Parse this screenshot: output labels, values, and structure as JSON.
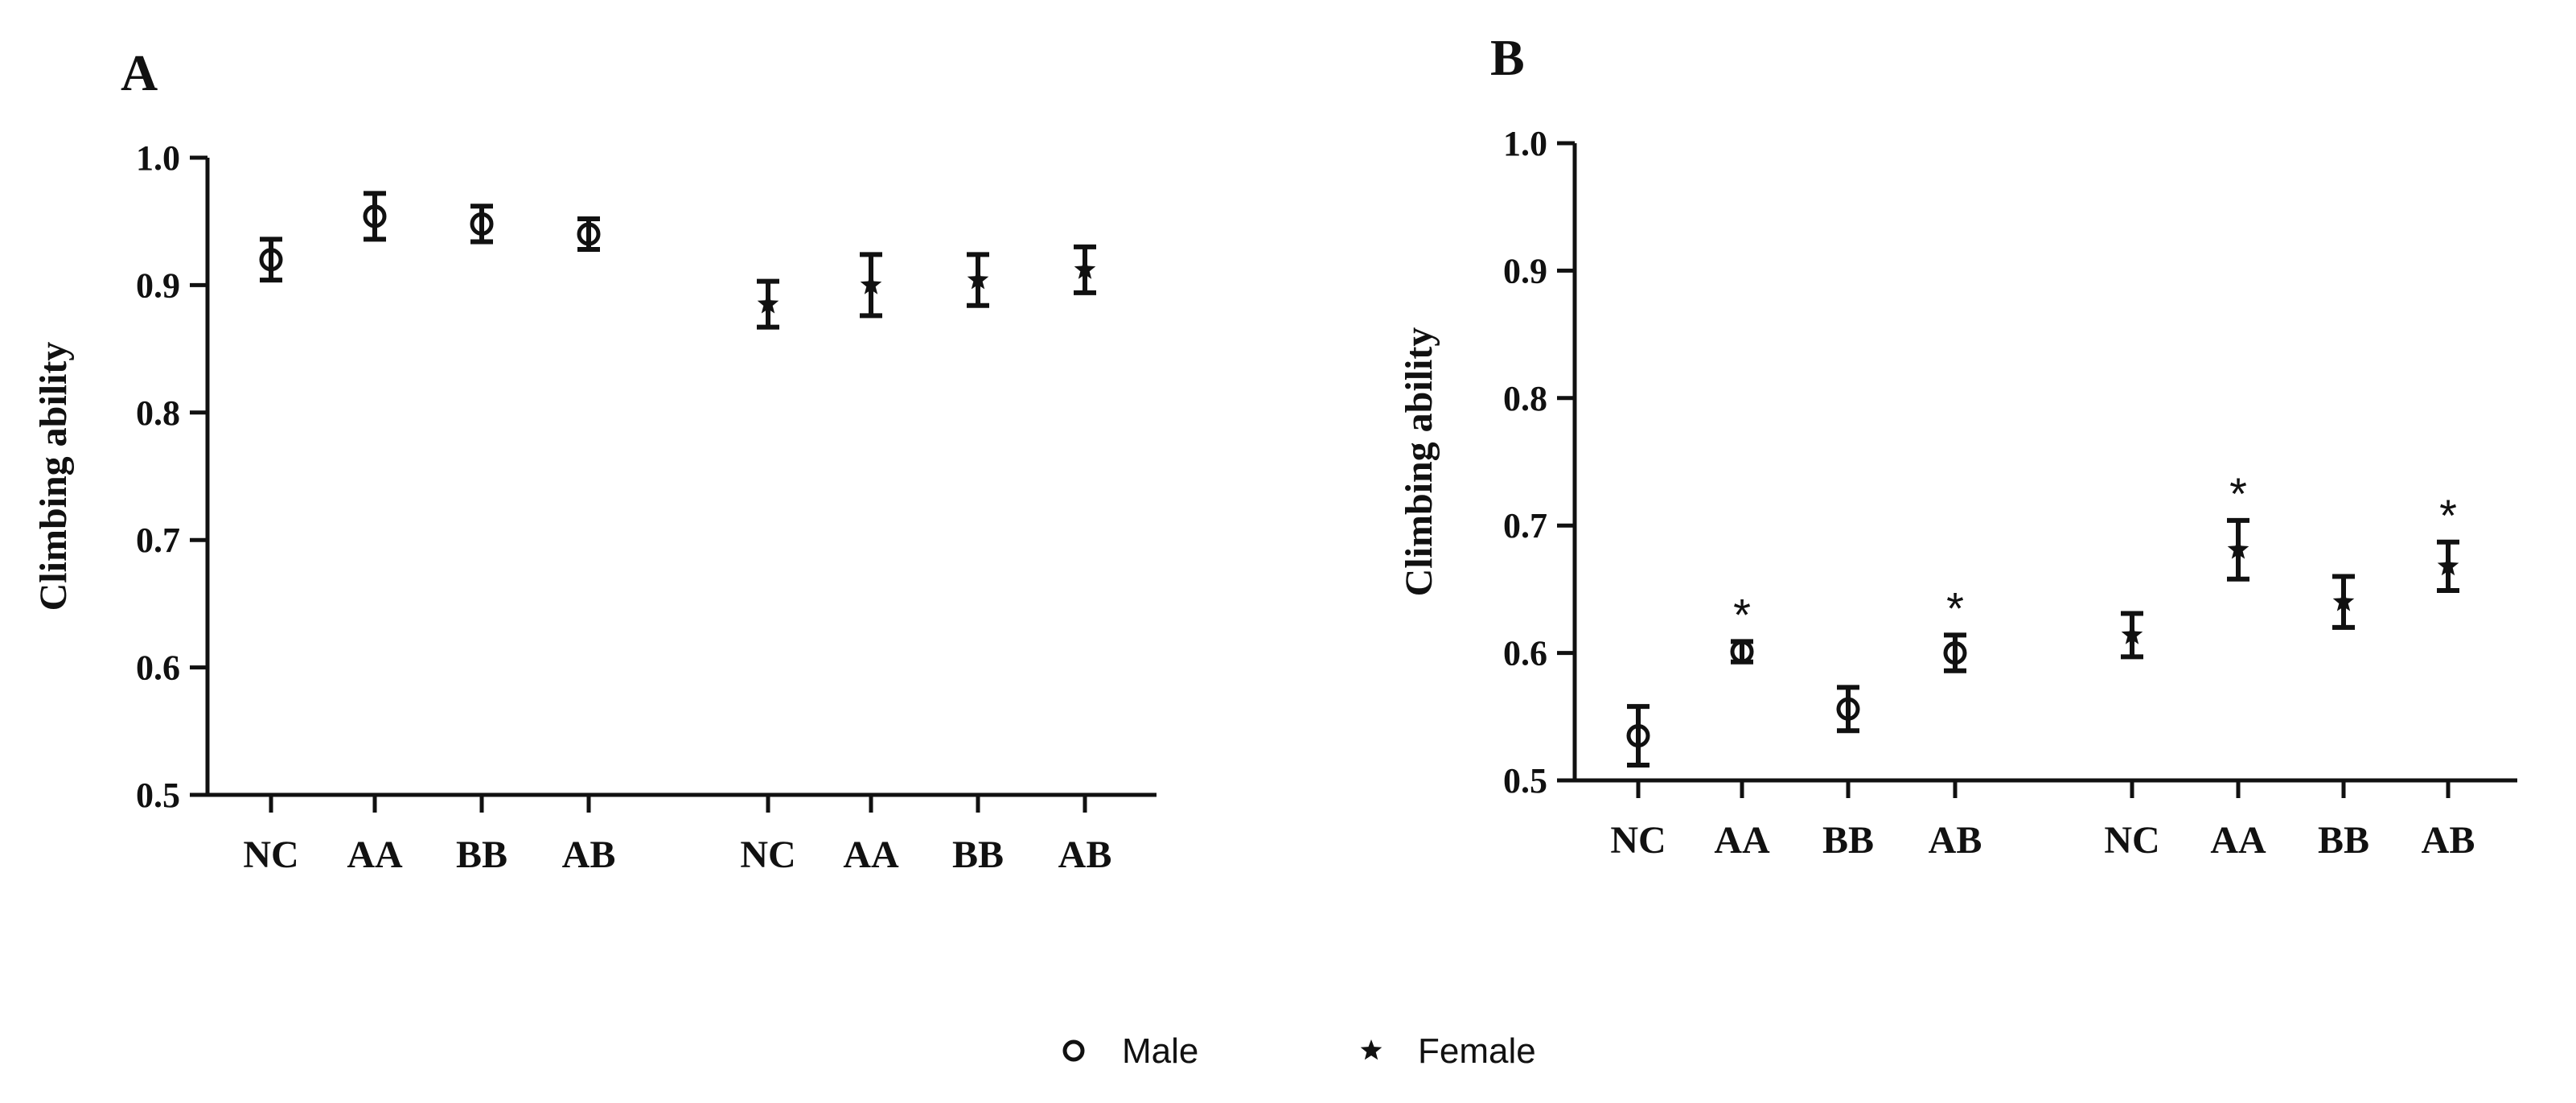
{
  "legend": {
    "male": "Male",
    "female": "Female",
    "male_marker": "open-circle",
    "female_marker": "filled-star"
  },
  "chart_data": [
    {
      "panel": "A",
      "type": "scatter",
      "ylabel": "Climbing ability",
      "xlabel": "",
      "ylim": [
        0.5,
        1.0
      ],
      "yticks": [
        "0.5",
        "0.6",
        "0.7",
        "0.8",
        "0.9",
        "1.0"
      ],
      "categories": [
        "NC",
        "AA",
        "BB",
        "AB",
        "NC",
        "AA",
        "BB",
        "AB"
      ],
      "series": [
        {
          "name": "Male",
          "marker": "circle",
          "points": [
            {
              "category": "NC",
              "mean": 0.92,
              "err": 0.016,
              "sig": ""
            },
            {
              "category": "AA",
              "mean": 0.954,
              "err": 0.018,
              "sig": ""
            },
            {
              "category": "BB",
              "mean": 0.948,
              "err": 0.014,
              "sig": ""
            },
            {
              "category": "AB",
              "mean": 0.94,
              "err": 0.012,
              "sig": ""
            }
          ]
        },
        {
          "name": "Female",
          "marker": "star",
          "points": [
            {
              "category": "NC",
              "mean": 0.885,
              "err": 0.018,
              "sig": ""
            },
            {
              "category": "AA",
              "mean": 0.9,
              "err": 0.024,
              "sig": ""
            },
            {
              "category": "BB",
              "mean": 0.904,
              "err": 0.02,
              "sig": ""
            },
            {
              "category": "AB",
              "mean": 0.912,
              "err": 0.018,
              "sig": ""
            }
          ]
        }
      ]
    },
    {
      "panel": "B",
      "type": "scatter",
      "ylabel": "Climbing ability",
      "xlabel": "",
      "ylim": [
        0.5,
        1.0
      ],
      "yticks": [
        "0.5",
        "0.6",
        "0.7",
        "0.8",
        "0.9",
        "1.0"
      ],
      "categories": [
        "NC",
        "AA",
        "BB",
        "AB",
        "NC",
        "AA",
        "BB",
        "AB"
      ],
      "series": [
        {
          "name": "Male",
          "marker": "circle",
          "points": [
            {
              "category": "NC",
              "mean": 0.535,
              "err": 0.023,
              "sig": ""
            },
            {
              "category": "AA",
              "mean": 0.601,
              "err": 0.008,
              "sig": "*"
            },
            {
              "category": "BB",
              "mean": 0.556,
              "err": 0.017,
              "sig": ""
            },
            {
              "category": "AB",
              "mean": 0.6,
              "err": 0.014,
              "sig": "*"
            }
          ]
        },
        {
          "name": "Female",
          "marker": "star",
          "points": [
            {
              "category": "NC",
              "mean": 0.614,
              "err": 0.017,
              "sig": ""
            },
            {
              "category": "AA",
              "mean": 0.681,
              "err": 0.023,
              "sig": "*"
            },
            {
              "category": "BB",
              "mean": 0.64,
              "err": 0.02,
              "sig": ""
            },
            {
              "category": "AB",
              "mean": 0.668,
              "err": 0.019,
              "sig": "*"
            }
          ]
        }
      ]
    }
  ]
}
